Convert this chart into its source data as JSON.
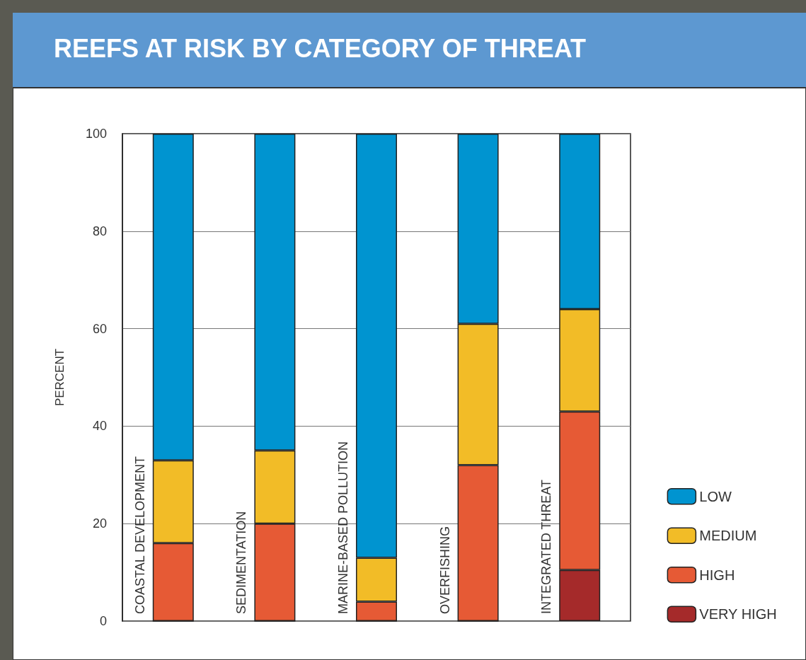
{
  "chart_data": {
    "type": "bar",
    "title": "REEFS AT RISK BY CATEGORY OF THREAT",
    "ylabel": "PERCENT",
    "categories": [
      "COASTAL DEVELOPMENT",
      "SEDIMENTATION",
      "MARINE-BASED POLLUTION",
      "OVERFISHING",
      "INTEGRATED THREAT"
    ],
    "stacked": true,
    "ylim": [
      0,
      100
    ],
    "yticks": [
      0,
      20,
      40,
      60,
      80,
      100
    ],
    "grid": "y",
    "legend": "bottom right",
    "series": [
      {
        "name": "VERY HIGH",
        "color": "#a52a2a",
        "values": [
          0,
          0,
          0,
          0,
          10.5
        ]
      },
      {
        "name": "HIGH",
        "color": "#e65a35",
        "values": [
          16,
          20,
          4,
          32,
          32.5
        ]
      },
      {
        "name": "MEDIUM",
        "color": "#f2bc27",
        "values": [
          17,
          15,
          9,
          29,
          21
        ]
      },
      {
        "name": "LOW",
        "color": "#0094d0",
        "values": [
          67,
          65,
          87,
          39,
          36
        ]
      }
    ]
  }
}
